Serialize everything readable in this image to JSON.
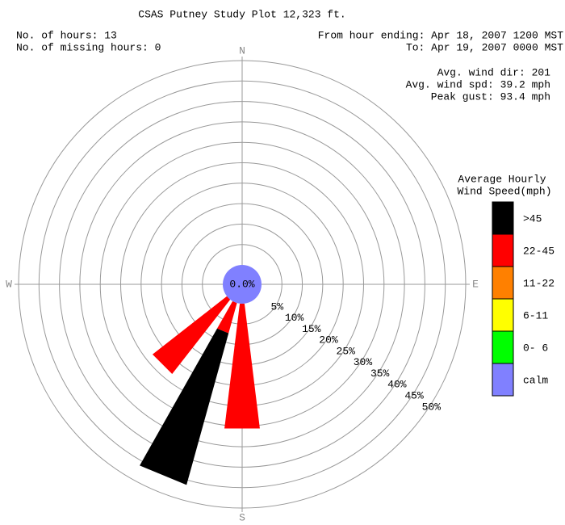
{
  "chart_data": {
    "type": "windrose",
    "title": "CSAS Putney Study Plot 12,323 ft.",
    "info_left": [
      "No. of hours: 13",
      "No. of missing hours: 0"
    ],
    "info_right": [
      "From hour ending: Apr 18, 2007 1200 MST",
      "To: Apr 19, 2007 0000 MST"
    ],
    "stats": [
      "Avg. wind dir: 201",
      "Avg. wind spd: 39.2 mph",
      "Peak gust: 93.4 mph"
    ],
    "compass": [
      "N",
      "E",
      "S",
      "W"
    ],
    "legend_title": [
      "Average Hourly",
      "Wind Speed(mph)"
    ],
    "x": [
      180,
      202.5,
      225
    ],
    "series": [
      {
        "name": ">45",
        "color": "#000000",
        "values": [
          0,
          38.5,
          0
        ]
      },
      {
        "name": "22-45",
        "color": "#ff0000",
        "values": [
          30.8,
          7.7,
          23.1
        ]
      },
      {
        "name": "11-22",
        "color": "#ff8000",
        "values": [
          0,
          0,
          0
        ]
      },
      {
        "name": "6-11",
        "color": "#ffff00",
        "values": [
          0,
          0,
          0
        ]
      },
      {
        "name": "0- 6",
        "color": "#00ff00",
        "values": [
          0,
          0,
          0
        ]
      }
    ],
    "calm": {
      "name": "calm",
      "color": "#8080ff",
      "value": 0,
      "value_label": "0.0%"
    },
    "rlim": [
      0,
      50
    ],
    "rticks": [
      {
        "value": 5,
        "label": "5%"
      },
      {
        "value": 10,
        "label": "10%"
      },
      {
        "value": 15,
        "label": "15%"
      },
      {
        "value": 20,
        "label": "20%"
      },
      {
        "value": 25,
        "label": "25%"
      },
      {
        "value": 30,
        "label": "30%"
      },
      {
        "value": 35,
        "label": "35%"
      },
      {
        "value": 40,
        "label": "40%"
      },
      {
        "value": 45,
        "label": "45%"
      },
      {
        "value": 50,
        "label": "50%"
      }
    ],
    "grid": true
  }
}
